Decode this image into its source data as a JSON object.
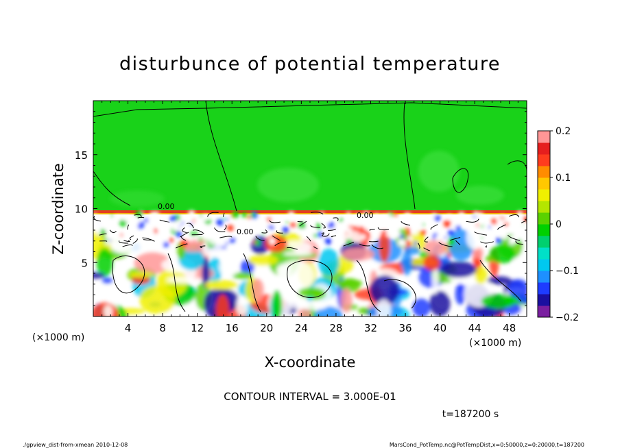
{
  "chart_data": {
    "type": "heatmap",
    "title": "disturbunce of potential temperature",
    "xlabel": "X-coordinate",
    "ylabel": "Z-coordinate",
    "x_unit_left": "(×1000 m)",
    "x_unit_right": "(×1000 m)",
    "xlim": [
      0,
      50
    ],
    "ylim": [
      0,
      20
    ],
    "x_ticks": [
      4,
      8,
      12,
      16,
      20,
      24,
      28,
      32,
      36,
      40,
      44,
      48
    ],
    "x_tick_labels": [
      "4",
      "8",
      "12",
      "16",
      "20",
      "24",
      "28",
      "32",
      "36",
      "40",
      "44",
      "48"
    ],
    "y_ticks": [
      5,
      10,
      15
    ],
    "y_tick_labels": [
      "5",
      "10",
      "15"
    ],
    "colorbar": {
      "min": -0.2,
      "max": 0.2,
      "tick_values": [
        0.2,
        0.1,
        0,
        -0.1,
        -0.2
      ],
      "tick_labels": [
        "0.2",
        "0.1",
        "0",
        "−0.1",
        "−0.2"
      ],
      "colors": [
        "#7a1fa0",
        "#1a0fa0",
        "#1e3cff",
        "#1e90ff",
        "#00c8f0",
        "#00e0c8",
        "#00d06e",
        "#00d000",
        "#5ad200",
        "#b4e600",
        "#f0f000",
        "#ffc800",
        "#ff8c00",
        "#ff3c1e",
        "#e61e1e",
        "#ff9696"
      ]
    },
    "field": {
      "upper_layer_value": 0.0,
      "contour_label": "0.00",
      "upper_boundary_z": 10
    },
    "contour_interval_text": "CONTOUR INTERVAL = 3.000E-01",
    "time_text": "t=187200 s"
  },
  "footer": {
    "left": "./gpview_dist-from-xmean   2010-12-08",
    "right": "MarsCond_PotTemp.nc@PotTempDist,x=0:50000,z=0:20000,t=187200"
  },
  "colors": {
    "upper_green": "#19d219",
    "background": "#ffffff"
  }
}
